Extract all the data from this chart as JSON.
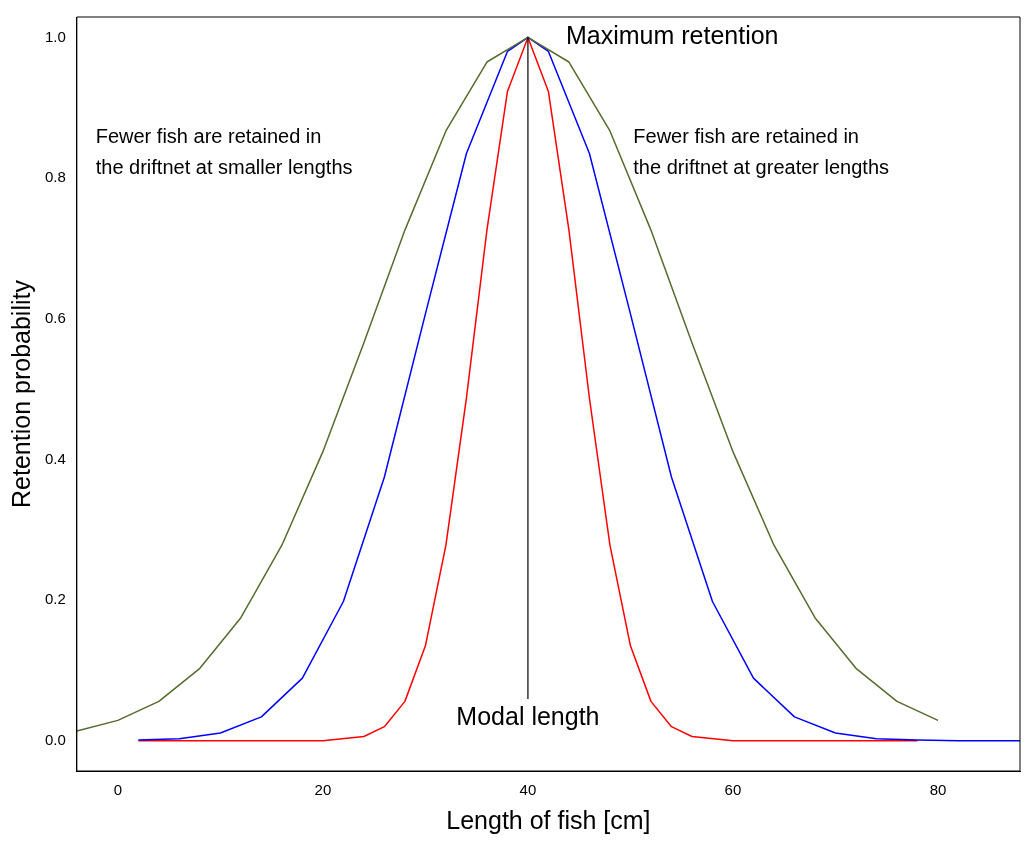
{
  "chart_data": {
    "type": "line",
    "xlabel": "Length of fish [cm]",
    "ylabel": "Retention probability",
    "xlim": [
      -4,
      88
    ],
    "ylim": [
      -0.043,
      1.029
    ],
    "xticks": [
      0,
      20,
      40,
      60,
      80
    ],
    "yticks": [
      {
        "value": 0,
        "label": "0.0"
      },
      {
        "value": 0.2,
        "label": "0.2"
      },
      {
        "value": 0.4,
        "label": "0.4"
      },
      {
        "value": 0.6,
        "label": "0.6"
      },
      {
        "value": 0.8,
        "label": "0.8"
      },
      {
        "value": 1,
        "label": "1.0"
      }
    ],
    "grid": false,
    "legend": false,
    "marker": "none",
    "line_style": "solid",
    "series": [
      {
        "type": "line",
        "color": "#556b2f",
        "x": [
          -4,
          0,
          4,
          8,
          12,
          16,
          20,
          24,
          28,
          32,
          36,
          40,
          44,
          48,
          52,
          56,
          60,
          64,
          68,
          72,
          76,
          80
        ],
        "values": [
          0.014,
          0.029,
          0.056,
          0.103,
          0.175,
          0.278,
          0.411,
          0.566,
          0.726,
          0.867,
          0.965,
          1,
          0.965,
          0.867,
          0.726,
          0.566,
          0.411,
          0.278,
          0.175,
          0.103,
          0.056,
          0.029
        ]
      },
      {
        "type": "line",
        "color": "#0000ff",
        "x": [
          2,
          6,
          10,
          14,
          18,
          22,
          26,
          30,
          34,
          38,
          40,
          42,
          46,
          50,
          54,
          58,
          62,
          66,
          70,
          74,
          78,
          82,
          88
        ],
        "values": [
          0.001,
          0.003,
          0.011,
          0.034,
          0.089,
          0.198,
          0.375,
          0.607,
          0.835,
          0.98,
          1,
          0.98,
          0.835,
          0.607,
          0.375,
          0.198,
          0.089,
          0.034,
          0.011,
          0.003,
          0.001,
          0,
          0
        ]
      },
      {
        "type": "line",
        "color": "#ff0000",
        "x": [
          2,
          20,
          24,
          26,
          28,
          30,
          32,
          34,
          36,
          38,
          40,
          42,
          44,
          46,
          48,
          50,
          52,
          54,
          56,
          60,
          78
        ],
        "values": [
          0,
          0,
          0.006,
          0.02,
          0.056,
          0.135,
          0.278,
          0.487,
          0.726,
          0.923,
          1,
          0.923,
          0.726,
          0.487,
          0.278,
          0.135,
          0.056,
          0.02,
          0.006,
          0,
          0
        ]
      }
    ],
    "ref_lines": [
      {
        "axis": "x",
        "value": 40,
        "label": "Modal length",
        "color": "#000000"
      }
    ],
    "annotations": [
      {
        "text": "Maximum retention",
        "x": 40,
        "y": 1
      },
      "Fewer fish are retained in\nthe driftnet at smaller lengths",
      "Fewer fish are retained in\nthe driftnet at greater lengths"
    ]
  }
}
